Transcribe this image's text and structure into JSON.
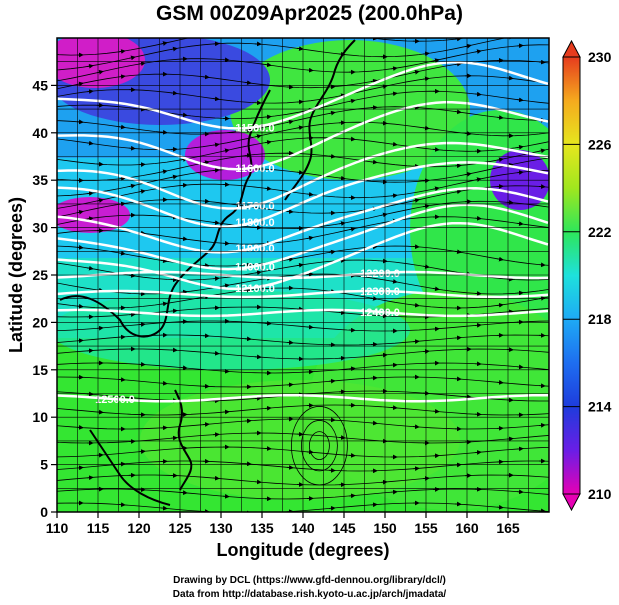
{
  "title": "GSM 00Z09Apr2025 (200.0hPa)",
  "chart_data": {
    "type": "heatmap",
    "xlabel": "Longitude (degrees)",
    "ylabel": "Latitude  (degrees)",
    "xlim": [
      110,
      170
    ],
    "ylim": [
      0,
      50
    ],
    "x_ticks": [
      "110",
      "115",
      "120",
      "125",
      "130",
      "135",
      "140",
      "145",
      "150",
      "155",
      "160",
      "165"
    ],
    "y_ticks": [
      "0",
      "5",
      "10",
      "15",
      "20",
      "25",
      "30",
      "35",
      "40",
      "45"
    ],
    "colorbar": {
      "range": [
        210,
        230
      ],
      "ticks": [
        "210",
        "214",
        "218",
        "222",
        "226",
        "230"
      ],
      "colors": [
        "#e600b4",
        "#c818d2",
        "#6a1ee6",
        "#1e3cdc",
        "#1e6ef0",
        "#1eaaf5",
        "#1ee1dc",
        "#1ef0a0",
        "#2ee65a",
        "#5ae628",
        "#a0e61e",
        "#e6e61e",
        "#f5aa1e",
        "#f56e1e",
        "#e63c1e"
      ]
    },
    "contours": [
      {
        "label": "11500.0",
        "lat": 44
      },
      {
        "label": "11600.0",
        "lat": 40
      },
      {
        "label": "11700.0",
        "lat": 36
      },
      {
        "label": "11800.0",
        "lat": 34
      },
      {
        "label": "11900.0",
        "lat": 31
      },
      {
        "label": "12000.0",
        "lat": 29
      },
      {
        "label": "12100.0",
        "lat": 27
      },
      {
        "label": "12200.0",
        "lat": 25
      },
      {
        "label": "12300.0",
        "lat": 23
      },
      {
        "label": "12400.0",
        "lat": 21
      },
      {
        "label": "12500.0",
        "lat": 12
      }
    ],
    "grid": true
  },
  "credit_line1": "Drawing by DCL (https://www.gfd-dennou.org/library/dcl/)",
  "credit_line2": "Data from http://database.rish.kyoto-u.ac.jp/arch/jmadata/"
}
